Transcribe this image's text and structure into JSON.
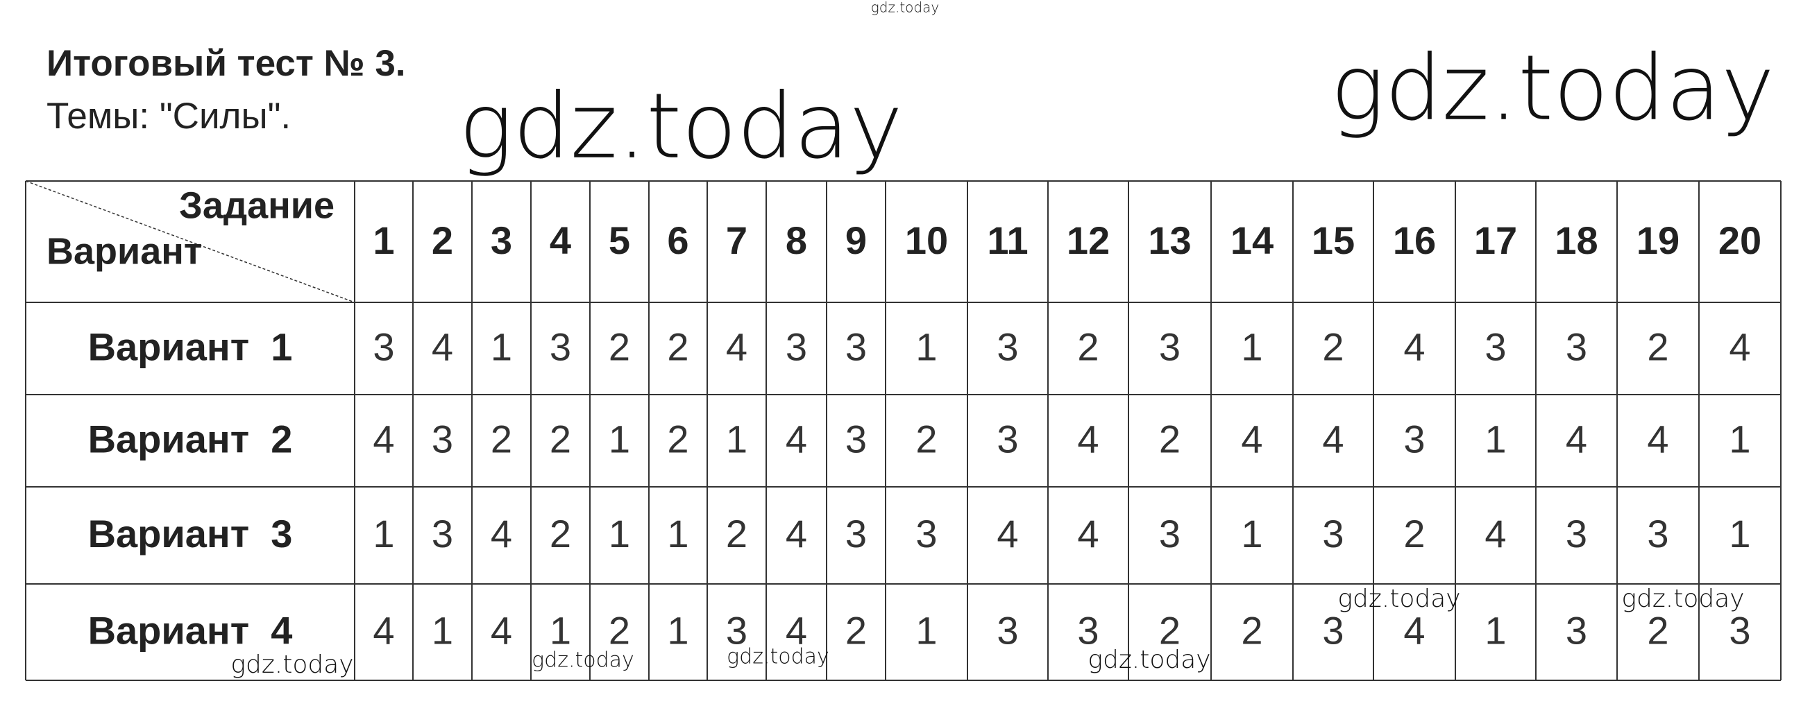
{
  "header": {
    "title": "Итоговый тест № 3.",
    "subtitle": "Темы: \"Силы\"."
  },
  "watermarks": [
    "gdz.today",
    "gdz.today",
    "gdz.today",
    "gdz.today",
    "gdz.today",
    "gdz.today",
    "gdz.today",
    "gdz.today",
    "gdz.today"
  ],
  "table": {
    "corner_top": "Задание",
    "corner_bottom": "Вариант",
    "columns": [
      1,
      2,
      3,
      4,
      5,
      6,
      7,
      8,
      9,
      10,
      11,
      12,
      13,
      14,
      15,
      16,
      17,
      18,
      19,
      20
    ],
    "rows": [
      {
        "label": "Вариант  1",
        "values": [
          3,
          4,
          1,
          3,
          2,
          2,
          4,
          3,
          3,
          1,
          3,
          2,
          3,
          1,
          2,
          4,
          3,
          3,
          2,
          4
        ]
      },
      {
        "label": "Вариант  2",
        "values": [
          4,
          3,
          2,
          2,
          1,
          2,
          1,
          4,
          3,
          2,
          3,
          4,
          2,
          4,
          4,
          3,
          1,
          4,
          4,
          1
        ]
      },
      {
        "label": "Вариант  3",
        "values": [
          1,
          3,
          4,
          2,
          1,
          1,
          2,
          4,
          3,
          3,
          4,
          4,
          3,
          1,
          3,
          2,
          4,
          3,
          3,
          1
        ]
      },
      {
        "label": "Вариант  4",
        "values": [
          4,
          1,
          4,
          1,
          2,
          1,
          3,
          4,
          2,
          1,
          3,
          3,
          2,
          2,
          3,
          4,
          1,
          3,
          2,
          3
        ]
      }
    ]
  }
}
